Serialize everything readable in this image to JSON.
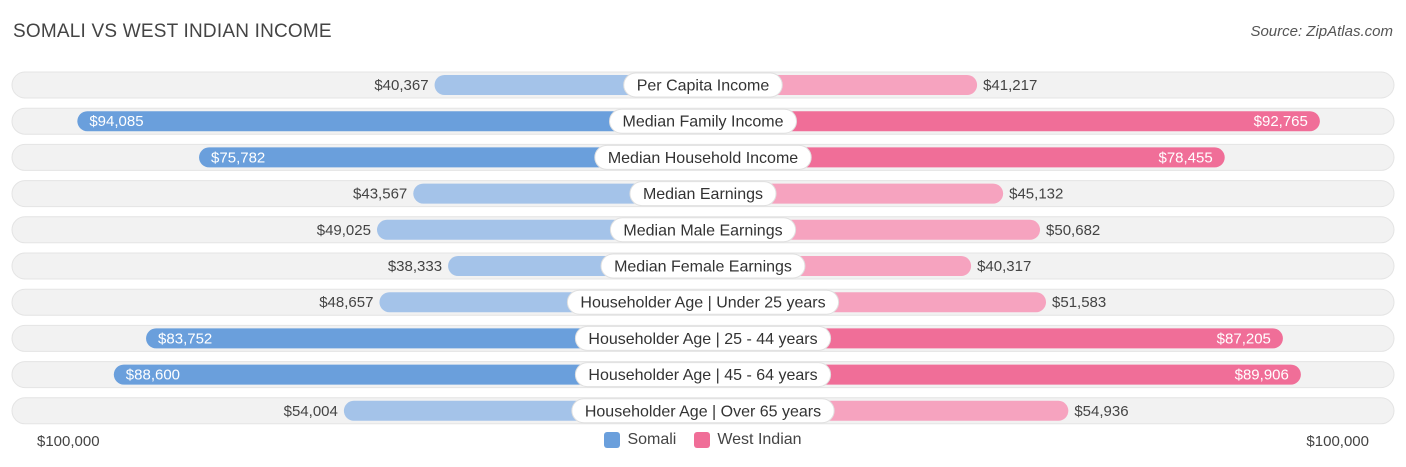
{
  "title": "SOMALI VS WEST INDIAN INCOME",
  "source": "Source: ZipAtlas.com",
  "colors": {
    "somali_strong": "#6a9fdc",
    "somali_light": "#a4c3e9",
    "west_indian_strong": "#f06e98",
    "west_indian_light": "#f6a3bf",
    "track": "#f1f1f1"
  },
  "chart_data": {
    "type": "bar",
    "orientation": "diverging-horizontal",
    "title": "SOMALI VS WEST INDIAN INCOME",
    "axis_max": 100000,
    "axis_left_label": "$100,000",
    "axis_right_label": "$100,000",
    "categories": [
      "Per Capita Income",
      "Median Family Income",
      "Median Household Income",
      "Median Earnings",
      "Median Male Earnings",
      "Median Female Earnings",
      "Householder Age | Under 25 years",
      "Householder Age | 25 - 44 years",
      "Householder Age | 45 - 64 years",
      "Householder Age | Over 65 years"
    ],
    "series": [
      {
        "name": "Somali",
        "side": "left",
        "values": [
          40367,
          94085,
          75782,
          43567,
          49025,
          38333,
          48657,
          83752,
          88600,
          54004
        ],
        "labels": [
          "$40,367",
          "$94,085",
          "$75,782",
          "$43,567",
          "$49,025",
          "$38,333",
          "$48,657",
          "$83,752",
          "$88,600",
          "$54,004"
        ]
      },
      {
        "name": "West Indian",
        "side": "right",
        "values": [
          41217,
          92765,
          78455,
          45132,
          50682,
          40317,
          51583,
          87205,
          89906,
          54936
        ],
        "labels": [
          "$41,217",
          "$92,765",
          "$78,455",
          "$45,132",
          "$50,682",
          "$40,317",
          "$51,583",
          "$87,205",
          "$89,906",
          "$54,936"
        ]
      }
    ],
    "legend": [
      "Somali",
      "West Indian"
    ]
  }
}
